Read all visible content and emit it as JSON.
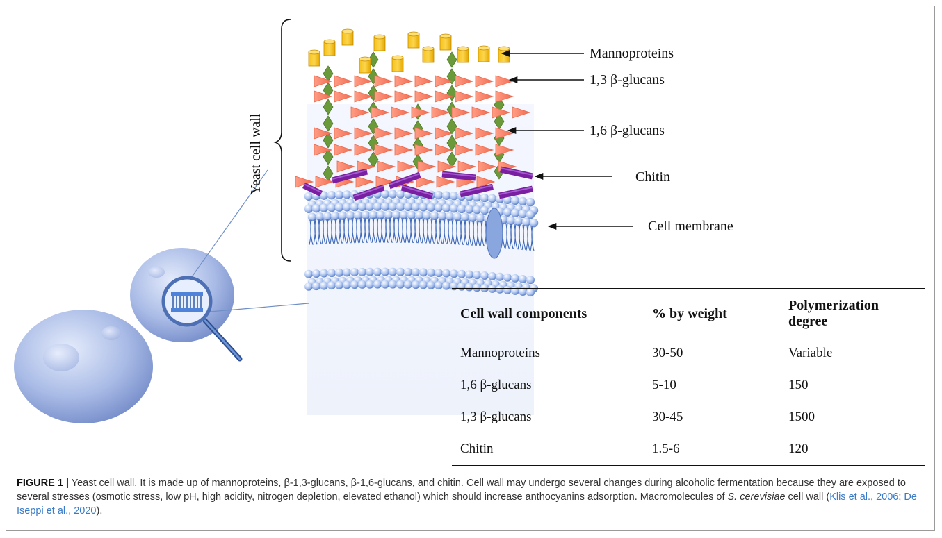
{
  "figure": {
    "labels": {
      "mannoproteins": "Mannoproteins",
      "glucans13": "1,3 β-glucans",
      "glucans16": "1,6 β-glucans",
      "chitin": "Chitin",
      "membrane": "Cell membrane",
      "wall": "Yeast cell wall"
    },
    "colors": {
      "mannoprotein": "#f4b400",
      "triangle": "#f5836b",
      "diamond": "#6b9a3a",
      "chitin": "#7a1fa2",
      "membrane": "#4a78c9",
      "cell": "#9fb1e0"
    },
    "icons": [
      "magnifier-icon",
      "yeast-cell-icon"
    ]
  },
  "table": {
    "headers": [
      "Cell wall components",
      "% by weight",
      "Polymerization  degree"
    ],
    "rows": [
      [
        "Mannoproteins",
        "30-50",
        "Variable"
      ],
      [
        "1,6 β-glucans",
        "5-10",
        "150"
      ],
      [
        "1,3 β-glucans",
        "30-45",
        "1500"
      ],
      [
        "Chitin",
        "1.5-6",
        "120"
      ]
    ]
  },
  "caption": {
    "figure_label": "FIGURE 1 |",
    "text1": " Yeast cell wall. It is made up of mannoproteins, β-1,3-glucans, β-1,6-glucans, and chitin. Cell wall may undergo several changes during alcoholic fermentation because they are exposed to several stresses (osmotic stress, low pH, high acidity, nitrogen depletion, elevated ethanol) which should increase anthocyanins adsorption. Macromolecules of ",
    "species": "S. cerevisiae",
    "text2": " cell wall (",
    "ref1": "Klis et al., 2006",
    "sep": "; ",
    "ref2": "De Iseppi et al., 2020",
    "text3": ")."
  }
}
